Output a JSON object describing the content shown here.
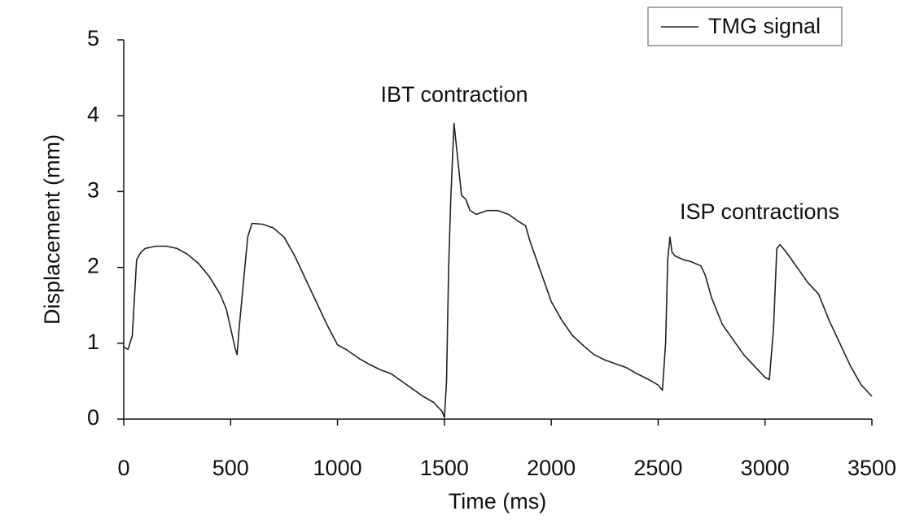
{
  "chart_data": {
    "type": "line",
    "xlabel": "Time (ms)",
    "ylabel": "Displacement (mm)",
    "annotations": [
      "IBT contraction",
      "ISP contractions"
    ],
    "x": [
      0,
      20,
      40,
      60,
      80,
      100,
      150,
      200,
      250,
      300,
      350,
      400,
      450,
      480,
      500,
      520,
      530,
      540,
      560,
      580,
      600,
      650,
      700,
      750,
      800,
      850,
      900,
      950,
      1000,
      1050,
      1100,
      1150,
      1200,
      1250,
      1300,
      1350,
      1400,
      1450,
      1490,
      1500,
      1510,
      1520,
      1530,
      1545,
      1560,
      1580,
      1600,
      1620,
      1650,
      1700,
      1750,
      1800,
      1850,
      1880,
      1900,
      1950,
      2000,
      2050,
      2100,
      2150,
      2200,
      2250,
      2300,
      2350,
      2400,
      2450,
      2500,
      2520,
      2535,
      2545,
      2555,
      2565,
      2580,
      2620,
      2650,
      2700,
      2720,
      2750,
      2800,
      2850,
      2900,
      2950,
      3000,
      3020,
      3040,
      3055,
      3070,
      3100,
      3150,
      3200,
      3250,
      3300,
      3350,
      3400,
      3450,
      3500
    ],
    "series": [
      {
        "name": "TMG signal",
        "color": "#222222",
        "values": [
          0.95,
          0.92,
          1.1,
          2.1,
          2.2,
          2.25,
          2.28,
          2.28,
          2.25,
          2.17,
          2.05,
          1.88,
          1.65,
          1.45,
          1.2,
          0.95,
          0.85,
          1.2,
          1.8,
          2.4,
          2.58,
          2.57,
          2.52,
          2.4,
          2.15,
          1.85,
          1.55,
          1.25,
          0.98,
          0.9,
          0.8,
          0.72,
          0.65,
          0.6,
          0.5,
          0.4,
          0.3,
          0.22,
          0.1,
          0.02,
          0.5,
          2.0,
          2.9,
          3.9,
          3.5,
          2.95,
          2.9,
          2.75,
          2.7,
          2.75,
          2.75,
          2.7,
          2.6,
          2.55,
          2.35,
          1.95,
          1.55,
          1.3,
          1.1,
          0.97,
          0.85,
          0.78,
          0.73,
          0.68,
          0.6,
          0.53,
          0.45,
          0.38,
          1.0,
          2.1,
          2.4,
          2.2,
          2.15,
          2.1,
          2.08,
          2.02,
          1.9,
          1.6,
          1.25,
          1.05,
          0.85,
          0.7,
          0.55,
          0.52,
          1.2,
          2.25,
          2.3,
          2.2,
          2.0,
          1.8,
          1.65,
          1.3,
          1.0,
          0.7,
          0.45,
          0.3
        ]
      }
    ],
    "xlim": [
      0,
      3500
    ],
    "xticks": [
      0,
      500,
      1000,
      1500,
      2000,
      2500,
      3000,
      3500
    ],
    "ylim": [
      0,
      5
    ],
    "yticks": [
      0,
      1,
      2,
      3,
      4,
      5
    ],
    "legend": "upper right"
  }
}
